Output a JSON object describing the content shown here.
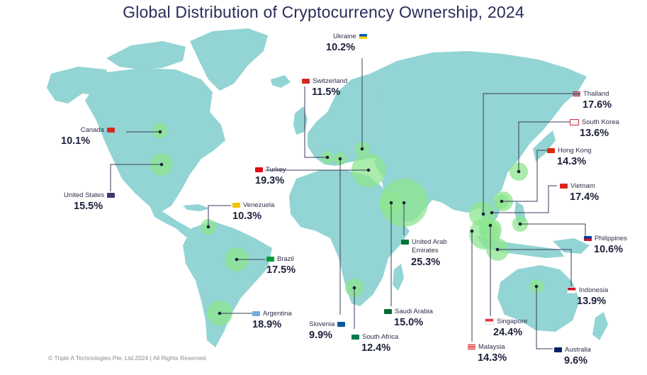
{
  "title": "Global Distribution of Cryptocurrency Ownership, 2024",
  "footer": "© Triple A Technologies Pte. Ltd.2024 | All Rights Reserved",
  "colors": {
    "land": "#93d4d4",
    "bubble": "#8ee68f",
    "line": "#3a3d5c",
    "dot": "#1c1f3a"
  },
  "countries": [
    {
      "key": "canada",
      "name": "Canada",
      "value": "10.1%",
      "flag": "#d52b1e"
    },
    {
      "key": "united_states",
      "name": "United States",
      "value": "15.5%",
      "flag": "#3c3b6e"
    },
    {
      "key": "venezuela",
      "name": "Venezuela",
      "value": "10.3%",
      "flag": "#f4c300"
    },
    {
      "key": "brazil",
      "name": "Brazil",
      "value": "17.5%",
      "flag": "#009c3b"
    },
    {
      "key": "argentina",
      "name": "Argentina",
      "value": "18.9%",
      "flag": "#74acdf"
    },
    {
      "key": "switzerland",
      "name": "Switzerland",
      "value": "11.5%",
      "flag": "#d52b1e"
    },
    {
      "key": "ukraine",
      "name": "Ukraine",
      "value": "10.2%",
      "flag": "#ffd500"
    },
    {
      "key": "turkey",
      "name": "Turkey",
      "value": "19.3%",
      "flag": "#e30a17"
    },
    {
      "key": "slovenia",
      "name": "Slovenia",
      "value": "9.9%",
      "flag": "#005da4"
    },
    {
      "key": "south_africa",
      "name": "South Africa",
      "value": "12.4%",
      "flag": "#007a4d"
    },
    {
      "key": "saudi_arabia",
      "name": "Saudi Arabia",
      "value": "15.0%",
      "flag": "#006c35"
    },
    {
      "key": "uae",
      "name": "United Arab Emirates",
      "value": "25.3%",
      "flag": "#00732f"
    },
    {
      "key": "thailand",
      "name": "Thailand",
      "value": "17.6%",
      "flag": "#2d2a4a"
    },
    {
      "key": "south_korea",
      "name": "South Korea",
      "value": "13.6%",
      "flag": "#cd2e3a"
    },
    {
      "key": "hong_kong",
      "name": "Hong Kong",
      "value": "14.3%",
      "flag": "#de2910"
    },
    {
      "key": "vietnam",
      "name": "Vietnam",
      "value": "17.4%",
      "flag": "#da251d"
    },
    {
      "key": "philippines",
      "name": "Philippines",
      "value": "10.6%",
      "flag": "#0038a8"
    },
    {
      "key": "indonesia",
      "name": "Indonesia",
      "value": "13.9%",
      "flag": "#ce1126"
    },
    {
      "key": "singapore",
      "name": "Singapore",
      "value": "24.4%",
      "flag": "#ef3340"
    },
    {
      "key": "malaysia",
      "name": "Malaysia",
      "value": "14.3%",
      "flag": "#cc0001"
    },
    {
      "key": "australia",
      "name": "Australia",
      "value": "9.6%",
      "flag": "#012169"
    }
  ]
}
